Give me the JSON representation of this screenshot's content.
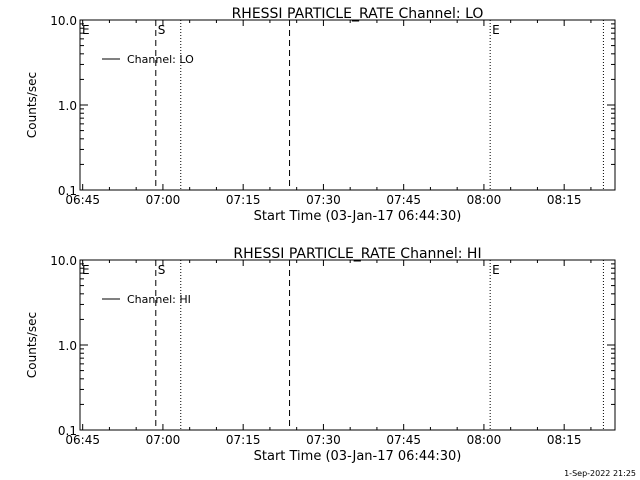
{
  "timestamp": "1-Sep-2022 21:25",
  "chart_data": [
    {
      "type": "line",
      "title": "RHESSI PARTICLE_RATE Channel: LO",
      "xlabel": "Start Time (03-Jan-17 06:44:30)",
      "ylabel": "Counts/sec",
      "y_scale": "log",
      "ylim": [
        0.1,
        10.0
      ],
      "xlim": [
        "06:44:30",
        "08:24:30"
      ],
      "x_ticks": [
        "06:45",
        "07:00",
        "07:15",
        "07:30",
        "07:45",
        "08:00",
        "08:15"
      ],
      "y_ticks": [
        "0.1",
        "1.0",
        "10.0"
      ],
      "legend": {
        "position": "top-left",
        "entries": [
          "Channel: LO"
        ]
      },
      "series": [
        {
          "name": "Channel: LO",
          "x": [],
          "y": []
        }
      ],
      "markers": [
        {
          "label": "E",
          "time": "06:44:30",
          "style": "dotted"
        },
        {
          "label": "S",
          "time": "06:58:40",
          "style": "dashed"
        },
        {
          "label": "",
          "time": "07:03:20",
          "style": "dotted"
        },
        {
          "label": "",
          "time": "07:23:40",
          "style": "dashed"
        },
        {
          "label": "E",
          "time": "08:01:10",
          "style": "dotted"
        },
        {
          "label": "",
          "time": "08:22:20",
          "style": "dotted"
        }
      ]
    },
    {
      "type": "line",
      "title": "RHESSI PARTICLE_RATE Channel: HI",
      "xlabel": "Start Time (03-Jan-17 06:44:30)",
      "ylabel": "Counts/sec",
      "y_scale": "log",
      "ylim": [
        0.1,
        10.0
      ],
      "xlim": [
        "06:44:30",
        "08:24:30"
      ],
      "x_ticks": [
        "06:45",
        "07:00",
        "07:15",
        "07:30",
        "07:45",
        "08:00",
        "08:15"
      ],
      "y_ticks": [
        "0.1",
        "1.0",
        "10.0"
      ],
      "legend": {
        "position": "top-left",
        "entries": [
          "Channel: HI"
        ]
      },
      "series": [
        {
          "name": "Channel: HI",
          "x": [],
          "y": []
        }
      ],
      "markers": [
        {
          "label": "E",
          "time": "06:44:30",
          "style": "dotted"
        },
        {
          "label": "S",
          "time": "06:58:40",
          "style": "dashed"
        },
        {
          "label": "",
          "time": "07:03:20",
          "style": "dotted"
        },
        {
          "label": "",
          "time": "07:23:40",
          "style": "dashed"
        },
        {
          "label": "E",
          "time": "08:01:10",
          "style": "dotted"
        },
        {
          "label": "",
          "time": "08:22:20",
          "style": "dotted"
        }
      ]
    }
  ]
}
